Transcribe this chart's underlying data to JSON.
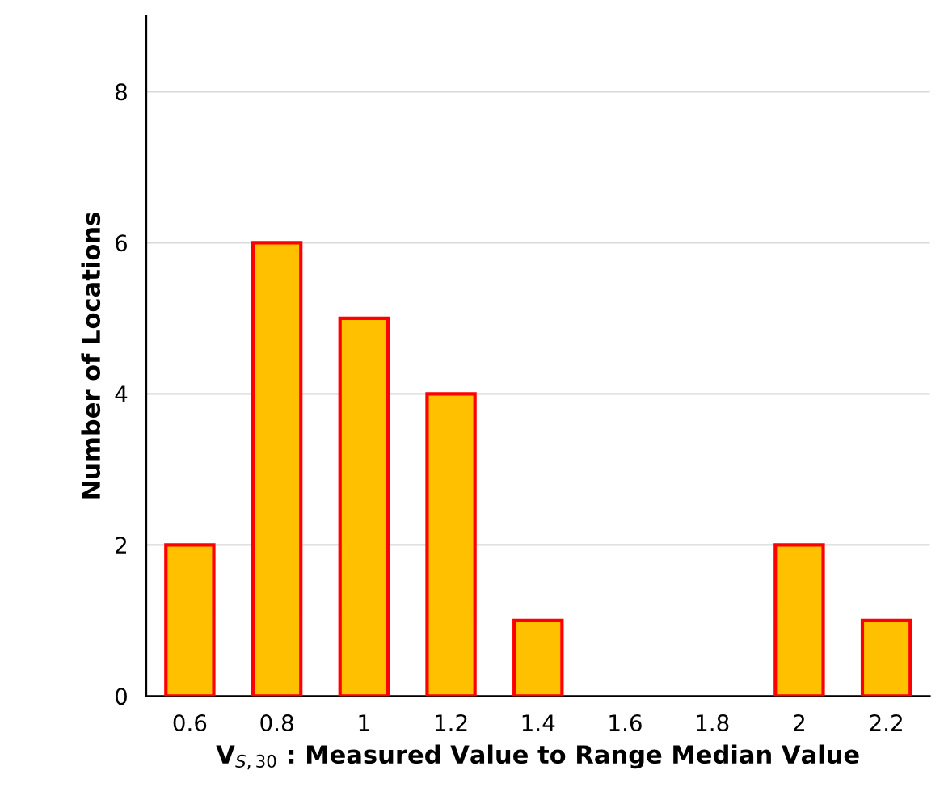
{
  "chart_data": {
    "type": "bar",
    "xlabel": "V$_{S,30}$ : Measured Value to Range Median Value",
    "ylabel": "Number of Locations",
    "categories": [
      "0.6",
      "0.8",
      "1",
      "1.2",
      "1.4",
      "1.6",
      "1.8",
      "2",
      "2.2"
    ],
    "values": [
      2,
      6,
      5,
      4,
      1,
      0,
      0,
      2,
      1
    ],
    "color": "#ffc000",
    "ylim": [
      0,
      9
    ],
    "yticks": [
      0,
      2,
      4,
      6,
      8
    ],
    "grid": "y"
  }
}
